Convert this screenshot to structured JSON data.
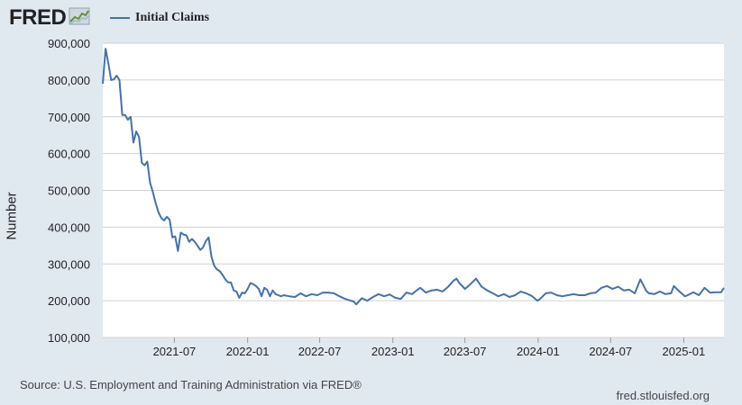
{
  "header": {
    "logo_text": "FRED",
    "logo_icon": "line-chart-icon"
  },
  "legend": {
    "label": "Initial Claims",
    "color": "#4572a7"
  },
  "footer": {
    "source": "Source: U.S. Employment and Training Administration via FRED®",
    "url": "fred.stlouisfed.org"
  },
  "chart_data": {
    "type": "line",
    "title": "",
    "xlabel": "",
    "ylabel": "Number",
    "ylim": [
      100000,
      900000
    ],
    "yticks": [
      100000,
      200000,
      300000,
      400000,
      500000,
      600000,
      700000,
      800000,
      900000
    ],
    "ytick_labels": [
      "100,000",
      "200,000",
      "300,000",
      "400,000",
      "500,000",
      "600,000",
      "700,000",
      "800,000",
      "900,000"
    ],
    "xlim": [
      "2021-01-02",
      "2025-04-12"
    ],
    "xticks": [
      "2021-07-01",
      "2022-01-01",
      "2022-07-01",
      "2023-01-01",
      "2023-07-01",
      "2024-01-01",
      "2024-07-01",
      "2025-01-01"
    ],
    "xtick_labels": [
      "2021-07",
      "2022-01",
      "2022-07",
      "2023-01",
      "2023-07",
      "2024-01",
      "2024-07",
      "2025-01"
    ],
    "grid": true,
    "legend_position": "top-left",
    "series": [
      {
        "name": "Initial Claims",
        "color": "#4572a7",
        "x": [
          "2021-01-02",
          "2021-01-09",
          "2021-01-16",
          "2021-01-23",
          "2021-01-30",
          "2021-02-06",
          "2021-02-13",
          "2021-02-20",
          "2021-02-27",
          "2021-03-06",
          "2021-03-13",
          "2021-03-20",
          "2021-03-27",
          "2021-04-03",
          "2021-04-10",
          "2021-04-17",
          "2021-04-24",
          "2021-05-01",
          "2021-05-08",
          "2021-05-15",
          "2021-05-22",
          "2021-05-29",
          "2021-06-05",
          "2021-06-12",
          "2021-06-19",
          "2021-06-26",
          "2021-07-03",
          "2021-07-10",
          "2021-07-17",
          "2021-07-24",
          "2021-07-31",
          "2021-08-07",
          "2021-08-14",
          "2021-08-21",
          "2021-08-28",
          "2021-09-04",
          "2021-09-11",
          "2021-09-18",
          "2021-09-25",
          "2021-10-02",
          "2021-10-09",
          "2021-10-16",
          "2021-10-23",
          "2021-10-30",
          "2021-11-06",
          "2021-11-13",
          "2021-11-20",
          "2021-11-27",
          "2021-12-04",
          "2021-12-11",
          "2021-12-18",
          "2021-12-25",
          "2022-01-01",
          "2022-01-08",
          "2022-01-15",
          "2022-01-22",
          "2022-01-29",
          "2022-02-05",
          "2022-02-12",
          "2022-02-19",
          "2022-02-26",
          "2022-03-05",
          "2022-03-12",
          "2022-03-19",
          "2022-03-26",
          "2022-04-02",
          "2022-04-16",
          "2022-04-30",
          "2022-05-14",
          "2022-05-28",
          "2022-06-11",
          "2022-06-25",
          "2022-07-09",
          "2022-07-23",
          "2022-08-06",
          "2022-08-20",
          "2022-09-03",
          "2022-09-17",
          "2022-09-24",
          "2022-10-01",
          "2022-10-15",
          "2022-10-29",
          "2022-11-12",
          "2022-11-26",
          "2022-12-10",
          "2022-12-24",
          "2023-01-07",
          "2023-01-21",
          "2023-02-04",
          "2023-02-18",
          "2023-03-04",
          "2023-03-11",
          "2023-03-25",
          "2023-04-08",
          "2023-04-22",
          "2023-05-06",
          "2023-05-20",
          "2023-06-03",
          "2023-06-10",
          "2023-06-17",
          "2023-07-01",
          "2023-07-15",
          "2023-07-29",
          "2023-08-12",
          "2023-08-26",
          "2023-09-09",
          "2023-09-23",
          "2023-10-07",
          "2023-10-21",
          "2023-11-04",
          "2023-11-18",
          "2023-12-02",
          "2023-12-16",
          "2023-12-30",
          "2024-01-06",
          "2024-01-20",
          "2024-02-03",
          "2024-02-17",
          "2024-03-02",
          "2024-03-16",
          "2024-03-30",
          "2024-04-13",
          "2024-04-27",
          "2024-05-11",
          "2024-05-25",
          "2024-06-08",
          "2024-06-22",
          "2024-07-06",
          "2024-07-20",
          "2024-08-03",
          "2024-08-17",
          "2024-08-31",
          "2024-09-14",
          "2024-09-28",
          "2024-10-05",
          "2024-10-19",
          "2024-11-02",
          "2024-11-16",
          "2024-11-30",
          "2024-12-07",
          "2024-12-21",
          "2025-01-04",
          "2025-01-11",
          "2025-01-25",
          "2025-02-08",
          "2025-02-22",
          "2025-03-08",
          "2025-03-22",
          "2025-04-05",
          "2025-04-12"
        ],
        "values": [
          790000,
          885000,
          845000,
          800000,
          802000,
          812000,
          800000,
          705000,
          705000,
          692000,
          700000,
          630000,
          660000,
          645000,
          575000,
          568000,
          578000,
          520000,
          495000,
          465000,
          440000,
          425000,
          418000,
          428000,
          420000,
          372000,
          375000,
          335000,
          385000,
          380000,
          378000,
          360000,
          368000,
          360000,
          350000,
          338000,
          345000,
          362000,
          372000,
          320000,
          295000,
          285000,
          280000,
          270000,
          258000,
          250000,
          250000,
          228000,
          225000,
          208000,
          222000,
          220000,
          232000,
          248000,
          245000,
          240000,
          232000,
          212000,
          235000,
          230000,
          212000,
          228000,
          218000,
          215000,
          212000,
          215000,
          212000,
          210000,
          220000,
          212000,
          218000,
          215000,
          222000,
          222000,
          220000,
          212000,
          205000,
          200000,
          198000,
          190000,
          207000,
          200000,
          210000,
          218000,
          212000,
          217000,
          208000,
          205000,
          222000,
          218000,
          230000,
          235000,
          222000,
          228000,
          230000,
          225000,
          238000,
          255000,
          260000,
          248000,
          232000,
          245000,
          260000,
          238000,
          228000,
          220000,
          212000,
          218000,
          210000,
          215000,
          225000,
          220000,
          213000,
          200000,
          205000,
          220000,
          222000,
          215000,
          212000,
          215000,
          218000,
          215000,
          215000,
          220000,
          222000,
          235000,
          240000,
          232000,
          238000,
          228000,
          230000,
          220000,
          258000,
          228000,
          220000,
          218000,
          225000,
          218000,
          220000,
          240000,
          225000,
          212000,
          215000,
          223000,
          215000,
          235000,
          222000,
          223000,
          223000,
          235000
        ]
      }
    ]
  }
}
